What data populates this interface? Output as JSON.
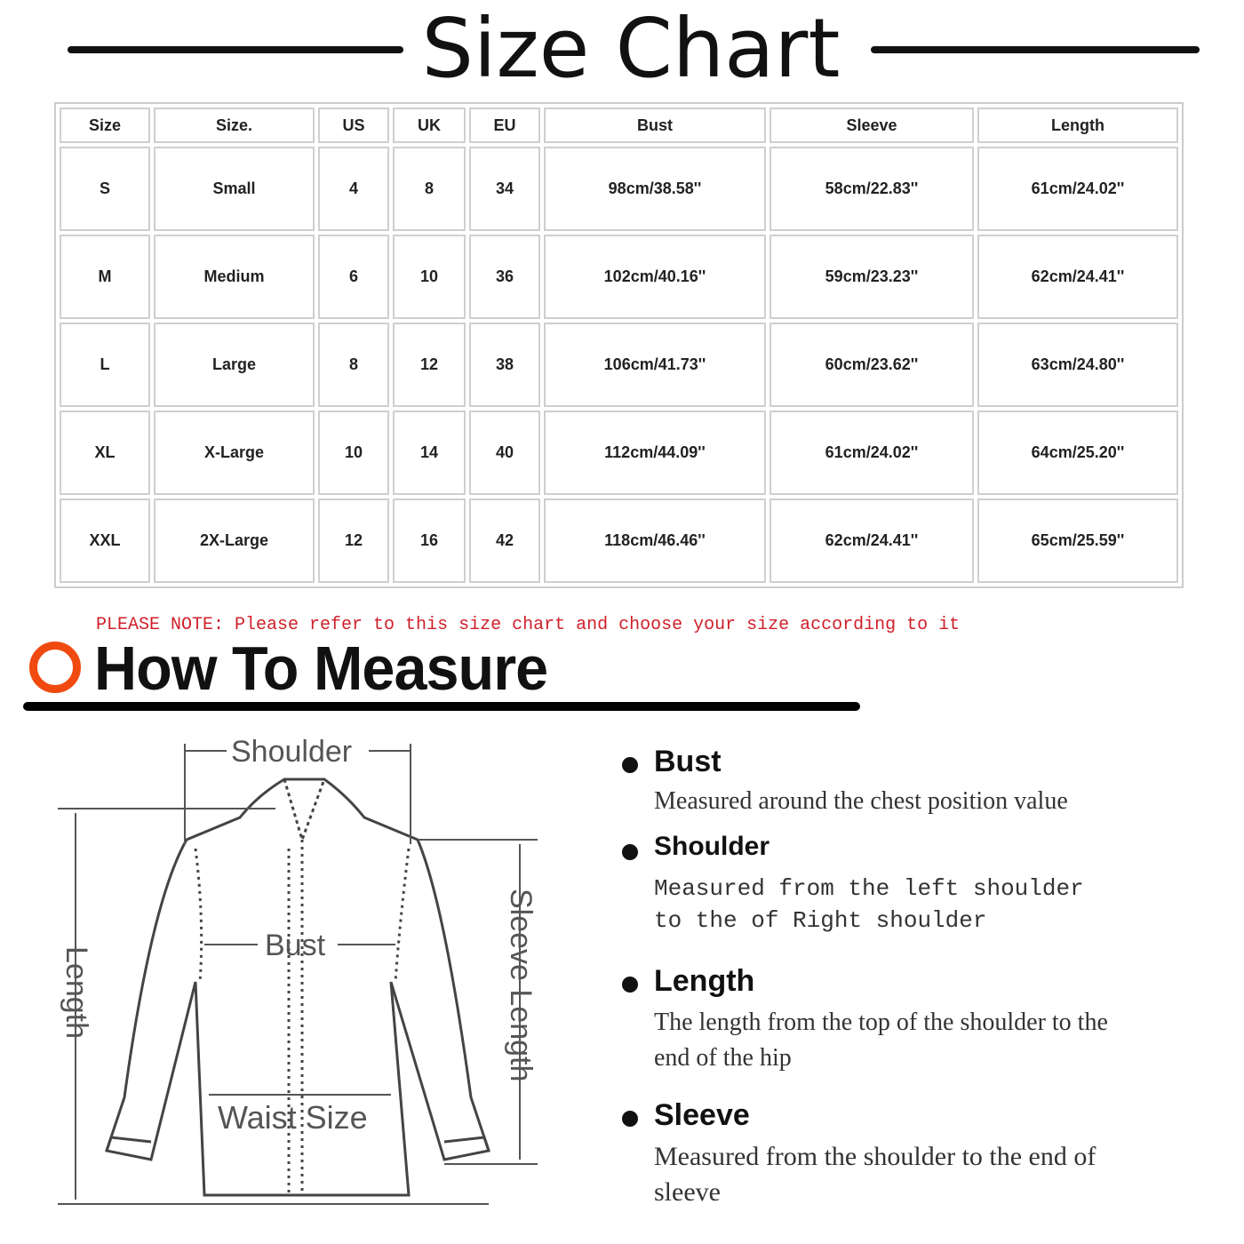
{
  "title": "Size Chart",
  "table": {
    "headers": [
      "Size",
      "Size.",
      "US",
      "UK",
      "EU",
      "Bust",
      "Sleeve",
      "Length"
    ],
    "rows": [
      [
        "S",
        "Small",
        "4",
        "8",
        "34",
        "98cm/38.58''",
        "58cm/22.83''",
        "61cm/24.02''"
      ],
      [
        "M",
        "Medium",
        "6",
        "10",
        "36",
        "102cm/40.16''",
        "59cm/23.23''",
        "62cm/24.41''"
      ],
      [
        "L",
        "Large",
        "8",
        "12",
        "38",
        "106cm/41.73''",
        "60cm/23.62''",
        "63cm/24.80''"
      ],
      [
        "XL",
        "X-Large",
        "10",
        "14",
        "40",
        "112cm/44.09''",
        "61cm/24.02''",
        "64cm/25.20''"
      ],
      [
        "XXL",
        "2X-Large",
        "12",
        "16",
        "42",
        "118cm/46.46''",
        "62cm/24.41''",
        "65cm/25.59''"
      ]
    ]
  },
  "note": "PLEASE NOTE: Please refer to this size chart and choose your size according to it",
  "measure_title": "How To Measure",
  "accent_color": "#f04a10",
  "note_color": "#d0202a",
  "diagram": {
    "shoulder": "Shoulder",
    "bust": "Bust",
    "waist": "Waist Size",
    "length": "Length",
    "sleeve_length": "Sleeve Length"
  },
  "guide": [
    {
      "heading": "Bust",
      "desc": "Measured around the chest position value"
    },
    {
      "heading": "Shoulder",
      "desc": "Measured from the left shoulder to the of Right shoulder"
    },
    {
      "heading": "Length",
      "desc": "The length from the top of the shoulder to the end of the hip"
    },
    {
      "heading": "Sleeve",
      "desc": "Measured from the shoulder to the end of sleeve"
    }
  ]
}
